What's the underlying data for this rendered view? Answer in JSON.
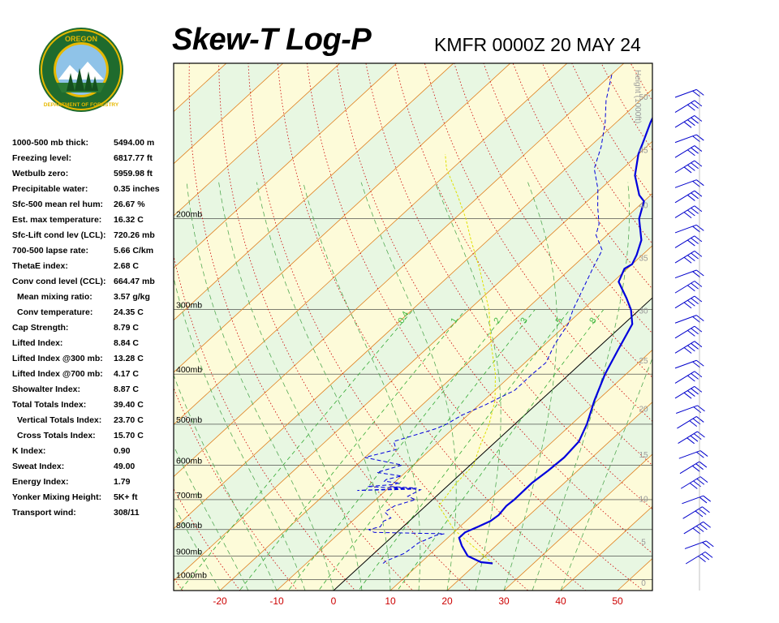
{
  "header": {
    "title": "Skew-T Log-P",
    "station_time": "KMFR 0000Z 20 MAY 24"
  },
  "logo": {
    "top_text": "OREGON",
    "bottom_text": "DEPARTMENT OF FORESTRY",
    "colors": {
      "ring": "#1f6b2d",
      "gold": "#e6b800",
      "sky": "#8fc3e8"
    }
  },
  "indices": [
    {
      "label": "1000-500 mb thick:",
      "value": "5494.00 m",
      "indent": false
    },
    {
      "label": "Freezing level:",
      "value": "6817.77 ft",
      "indent": false
    },
    {
      "label": "Wetbulb zero:",
      "value": "5959.98 ft",
      "indent": false
    },
    {
      "label": "Precipitable water:",
      "value": "0.35 inches",
      "indent": false
    },
    {
      "label": "Sfc-500 mean rel hum:",
      "value": "26.67 %",
      "indent": false
    },
    {
      "label": "Est. max temperature:",
      "value": "16.32 C",
      "indent": false
    },
    {
      "label": "Sfc-Lift cond lev (LCL):",
      "value": "720.26 mb",
      "indent": false
    },
    {
      "label": "700-500 lapse rate:",
      "value": "5.66 C/km",
      "indent": false
    },
    {
      "label": "ThetaE index:",
      "value": "2.68 C",
      "indent": false
    },
    {
      "label": "Conv cond level (CCL):",
      "value": "664.47 mb",
      "indent": false
    },
    {
      "label": "Mean mixing ratio:",
      "value": "3.57 g/kg",
      "indent": true
    },
    {
      "label": "Conv temperature:",
      "value": "24.35 C",
      "indent": true
    },
    {
      "label": "Cap Strength:",
      "value": "8.79 C",
      "indent": false
    },
    {
      "label": "Lifted Index:",
      "value": "8.84 C",
      "indent": false
    },
    {
      "label": "Lifted Index @300 mb:",
      "value": "13.28 C",
      "indent": false
    },
    {
      "label": "Lifted Index @700 mb:",
      "value": "4.17 C",
      "indent": false
    },
    {
      "label": "Showalter Index:",
      "value": "8.87 C",
      "indent": false
    },
    {
      "label": "Total Totals Index:",
      "value": "39.40 C",
      "indent": false
    },
    {
      "label": "Vertical Totals Index:",
      "value": "23.70 C",
      "indent": true
    },
    {
      "label": "Cross Totals Index:",
      "value": "15.70 C",
      "indent": true
    },
    {
      "label": "K Index:",
      "value": "0.90",
      "indent": false
    },
    {
      "label": "Sweat Index:",
      "value": "49.00",
      "indent": false
    },
    {
      "label": "Energy Index:",
      "value": "1.79",
      "indent": false
    },
    {
      "label": "Yonker Mixing Height:",
      "value": "5K+ ft",
      "indent": false
    },
    {
      "label": "Transport wind:",
      "value": "308/11",
      "indent": false
    }
  ],
  "chart_data": {
    "type": "line",
    "title": "Skew-T Log-P",
    "subtitle": "KMFR 0000Z 20 MAY 24",
    "x_axis": {
      "ticks": [
        -20,
        -10,
        0,
        10,
        20,
        30,
        40,
        50
      ],
      "range": [
        -29,
        56
      ],
      "tick_color": "#cc0000"
    },
    "y_axis": {
      "scale": "log",
      "range": [
        1050,
        100
      ],
      "ticks": [
        {
          "p": 200,
          "label": "200mb"
        },
        {
          "p": 300,
          "label": "300mb"
        },
        {
          "p": 400,
          "label": "400mb"
        },
        {
          "p": 500,
          "label": "500mb"
        },
        {
          "p": 600,
          "label": "600mb"
        },
        {
          "p": 700,
          "label": "700mb"
        },
        {
          "p": 800,
          "label": "800mb"
        },
        {
          "p": 900,
          "label": "900mb"
        },
        {
          "p": 1000,
          "label": "1000mb"
        }
      ]
    },
    "height_axis": {
      "label": "Height (1000ft)",
      "ticks": [
        {
          "p": 1013,
          "label": "0"
        },
        {
          "p": 843,
          "label": "5"
        },
        {
          "p": 697,
          "label": "10"
        },
        {
          "p": 572,
          "label": "15"
        },
        {
          "p": 466,
          "label": "20"
        },
        {
          "p": 376,
          "label": "25"
        },
        {
          "p": 301,
          "label": "30"
        },
        {
          "p": 238,
          "label": "35"
        },
        {
          "p": 188,
          "label": "40"
        },
        {
          "p": 147,
          "label": "45"
        },
        {
          "p": 116,
          "label": "50"
        }
      ]
    },
    "mixing_ratio_labels": [
      {
        "w": 0.4,
        "label": "0.4"
      },
      {
        "w": 1,
        "label": "1"
      },
      {
        "w": 2,
        "label": "2"
      },
      {
        "w": 3,
        "label": "3"
      },
      {
        "w": 5,
        "label": "5"
      },
      {
        "w": 8,
        "label": "8"
      }
    ],
    "temperature": [
      [
        930,
        22.8
      ],
      [
        925,
        20.5
      ],
      [
        900,
        17
      ],
      [
        860,
        14
      ],
      [
        830,
        12
      ],
      [
        810,
        12
      ],
      [
        790,
        13.2
      ],
      [
        770,
        14.3
      ],
      [
        750,
        14.6
      ],
      [
        720,
        14.2
      ],
      [
        700,
        14.4
      ],
      [
        650,
        14.3
      ],
      [
        615,
        14.8
      ],
      [
        580,
        15.1
      ],
      [
        540,
        14.6
      ],
      [
        500,
        12.7
      ],
      [
        450,
        9.5
      ],
      [
        400,
        6.3
      ],
      [
        360,
        4.0
      ],
      [
        320,
        1.5
      ],
      [
        300,
        -1.5
      ],
      [
        285,
        -4.5
      ],
      [
        265,
        -9
      ],
      [
        250,
        -10.5
      ],
      [
        245,
        -10
      ],
      [
        235,
        -11
      ],
      [
        220,
        -13
      ],
      [
        200,
        -17.5
      ],
      [
        185,
        -20
      ],
      [
        180,
        -22
      ],
      [
        165,
        -26.5
      ],
      [
        150,
        -30
      ],
      [
        142,
        -31.5
      ],
      [
        130,
        -34
      ],
      [
        122,
        -35.5
      ],
      [
        112,
        -38
      ],
      [
        104,
        -41
      ]
    ],
    "dewpoint": [
      [
        930,
        3.5
      ],
      [
        920,
        3.6
      ],
      [
        890,
        5.3
      ],
      [
        870,
        5.6
      ],
      [
        850,
        5.8
      ],
      [
        830,
        6.9
      ],
      [
        820,
        7.5
      ],
      [
        815,
        8.6
      ],
      [
        810,
        -4
      ],
      [
        800,
        -5.5
      ],
      [
        790,
        -4
      ],
      [
        770,
        -4.5
      ],
      [
        760,
        -3.8
      ],
      [
        740,
        -6
      ],
      [
        720,
        -5.5
      ],
      [
        700,
        -3
      ],
      [
        690,
        -5
      ],
      [
        670,
        -4
      ],
      [
        660,
        -10
      ],
      [
        665,
        -5
      ],
      [
        672,
        -15
      ],
      [
        668,
        -5
      ],
      [
        660,
        -14
      ],
      [
        655,
        -10
      ],
      [
        650,
        -9
      ],
      [
        645,
        -12
      ],
      [
        640,
        -12
      ],
      [
        630,
        -10
      ],
      [
        620,
        -15
      ],
      [
        600,
        -12
      ],
      [
        580,
        -20
      ],
      [
        560,
        -16
      ],
      [
        540,
        -18
      ],
      [
        510,
        -13
      ],
      [
        500,
        -12
      ],
      [
        480,
        -11
      ],
      [
        460,
        -9
      ],
      [
        430,
        -6.5
      ],
      [
        400,
        -6.5
      ],
      [
        380,
        -6.3
      ],
      [
        350,
        -8.3
      ],
      [
        320,
        -9.8
      ],
      [
        300,
        -11.7
      ],
      [
        275,
        -13.8
      ],
      [
        250,
        -16.1
      ],
      [
        230,
        -18
      ],
      [
        215,
        -22
      ],
      [
        205,
        -23.5
      ],
      [
        190,
        -27
      ],
      [
        175,
        -30.5
      ],
      [
        160,
        -35
      ],
      [
        145,
        -38
      ],
      [
        130,
        -42
      ],
      [
        118,
        -46
      ],
      [
        105,
        -50
      ]
    ],
    "parcel": [
      [
        930,
        22.8
      ],
      [
        800,
        9.5
      ],
      [
        720,
        2.3
      ],
      [
        650,
        1
      ],
      [
        600,
        0.6
      ],
      [
        550,
        -2
      ],
      [
        500,
        -4.5
      ],
      [
        450,
        -8
      ],
      [
        400,
        -13
      ],
      [
        350,
        -19.5
      ],
      [
        300,
        -26.5
      ],
      [
        250,
        -36
      ],
      [
        220,
        -43
      ],
      [
        200,
        -48
      ],
      [
        180,
        -54
      ],
      [
        160,
        -61
      ],
      [
        150,
        -64
      ]
    ],
    "wind_profile": {
      "label": "wind barbs",
      "levels": 32
    },
    "colors": {
      "temperature": "#0000dd",
      "dewpoint": "#0000dd",
      "parcel": "#e0e000",
      "isotherm": "#e08020",
      "dry_adiabat": "#cc0000",
      "moist_adiabat": "#55aa55",
      "mixing_ratio": "#33aa33",
      "band_yellow": "#fdfbd9",
      "band_green": "#e8f7e2",
      "freezing_line": "#000000",
      "barbs": "#0000cc"
    }
  }
}
